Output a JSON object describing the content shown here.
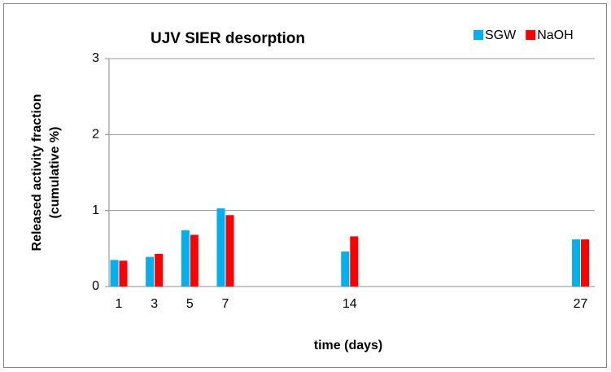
{
  "chart_data": {
    "type": "bar",
    "title": "UJV SIER desorption",
    "x_label": "time (days)",
    "y_label": [
      "Released activity fraction",
      "(cumulative %)"
    ],
    "x": [
      1,
      3,
      5,
      7,
      14,
      27
    ],
    "xlim": [
      0.45,
      27.8
    ],
    "xticks": [
      1,
      3,
      5,
      7,
      14,
      27
    ],
    "ylim": [
      0,
      3
    ],
    "yticks": [
      0,
      1,
      2,
      3
    ],
    "grid": true,
    "legend": "top-right",
    "series": [
      {
        "name": "SGW",
        "color": "#00b0f0",
        "values": [
          0.35,
          0.39,
          0.74,
          1.03,
          0.46,
          0.62
        ]
      },
      {
        "name": "NaOH",
        "color": "#ff0000",
        "values": [
          0.34,
          0.43,
          0.68,
          0.94,
          0.66,
          0.62
        ]
      }
    ]
  }
}
